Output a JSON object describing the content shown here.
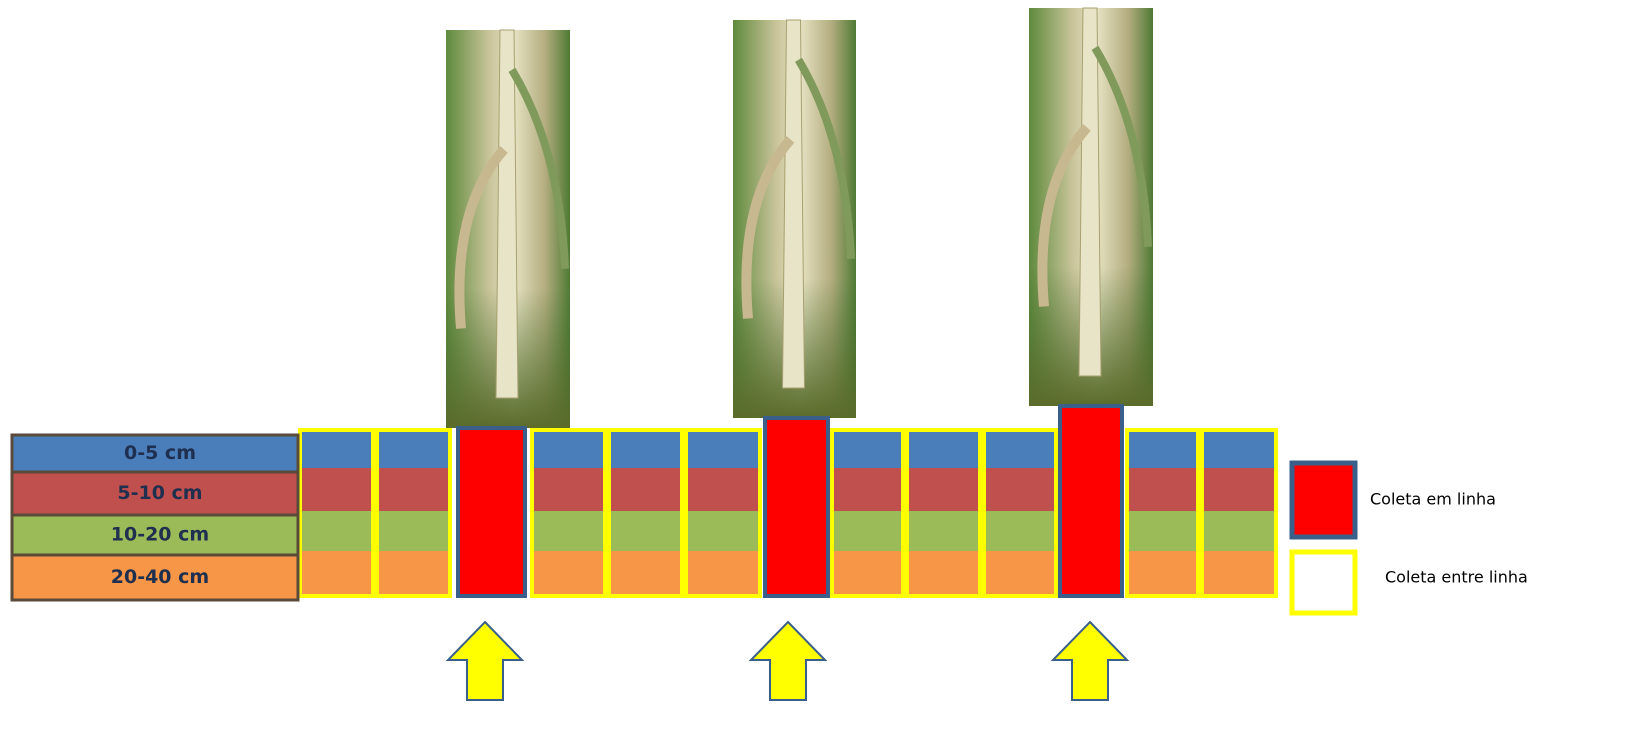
{
  "layers": [
    "0-5 cm",
    "5-10 cm",
    "10-20 cm",
    "20-40 cm"
  ],
  "legend": [
    {
      "label": "Coleta em linha"
    },
    {
      "label": "Coleta entre linha"
    }
  ]
}
